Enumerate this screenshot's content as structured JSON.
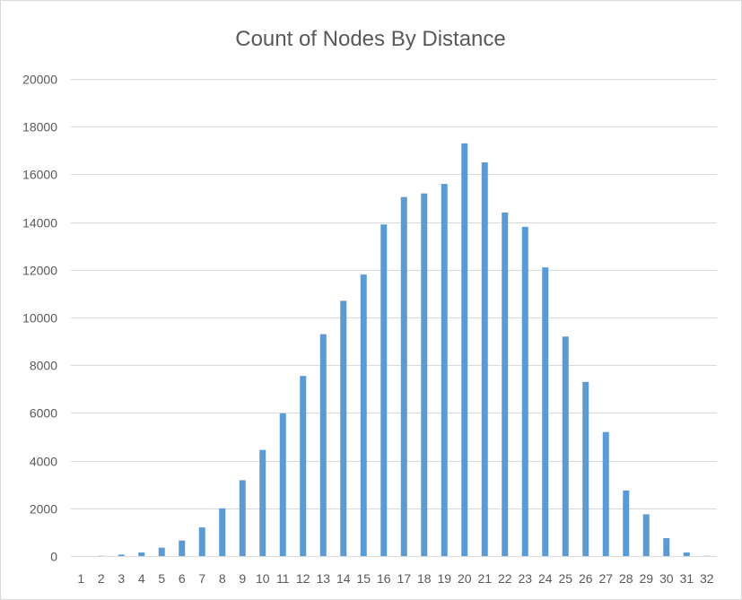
{
  "chart_data": {
    "type": "bar",
    "title": "Count of Nodes By Distance",
    "xlabel": "",
    "ylabel": "",
    "ylim": [
      0,
      20000
    ],
    "yticks": [
      0,
      2000,
      4000,
      6000,
      8000,
      10000,
      12000,
      14000,
      16000,
      18000,
      20000
    ],
    "grid": true,
    "legend": "none",
    "bar_color": "#5b9bd5",
    "categories": [
      "1",
      "2",
      "3",
      "4",
      "5",
      "6",
      "7",
      "8",
      "9",
      "10",
      "11",
      "12",
      "13",
      "14",
      "15",
      "16",
      "17",
      "18",
      "19",
      "20",
      "21",
      "22",
      "23",
      "24",
      "25",
      "26",
      "27",
      "28",
      "29",
      "30",
      "31",
      "32"
    ],
    "values": [
      0,
      10,
      60,
      150,
      350,
      650,
      1200,
      2000,
      3180,
      4450,
      5980,
      7550,
      9300,
      10700,
      11800,
      13900,
      15050,
      15200,
      15600,
      17300,
      16500,
      14400,
      13800,
      12100,
      9200,
      7300,
      5200,
      2750,
      1750,
      750,
      150,
      10
    ]
  }
}
